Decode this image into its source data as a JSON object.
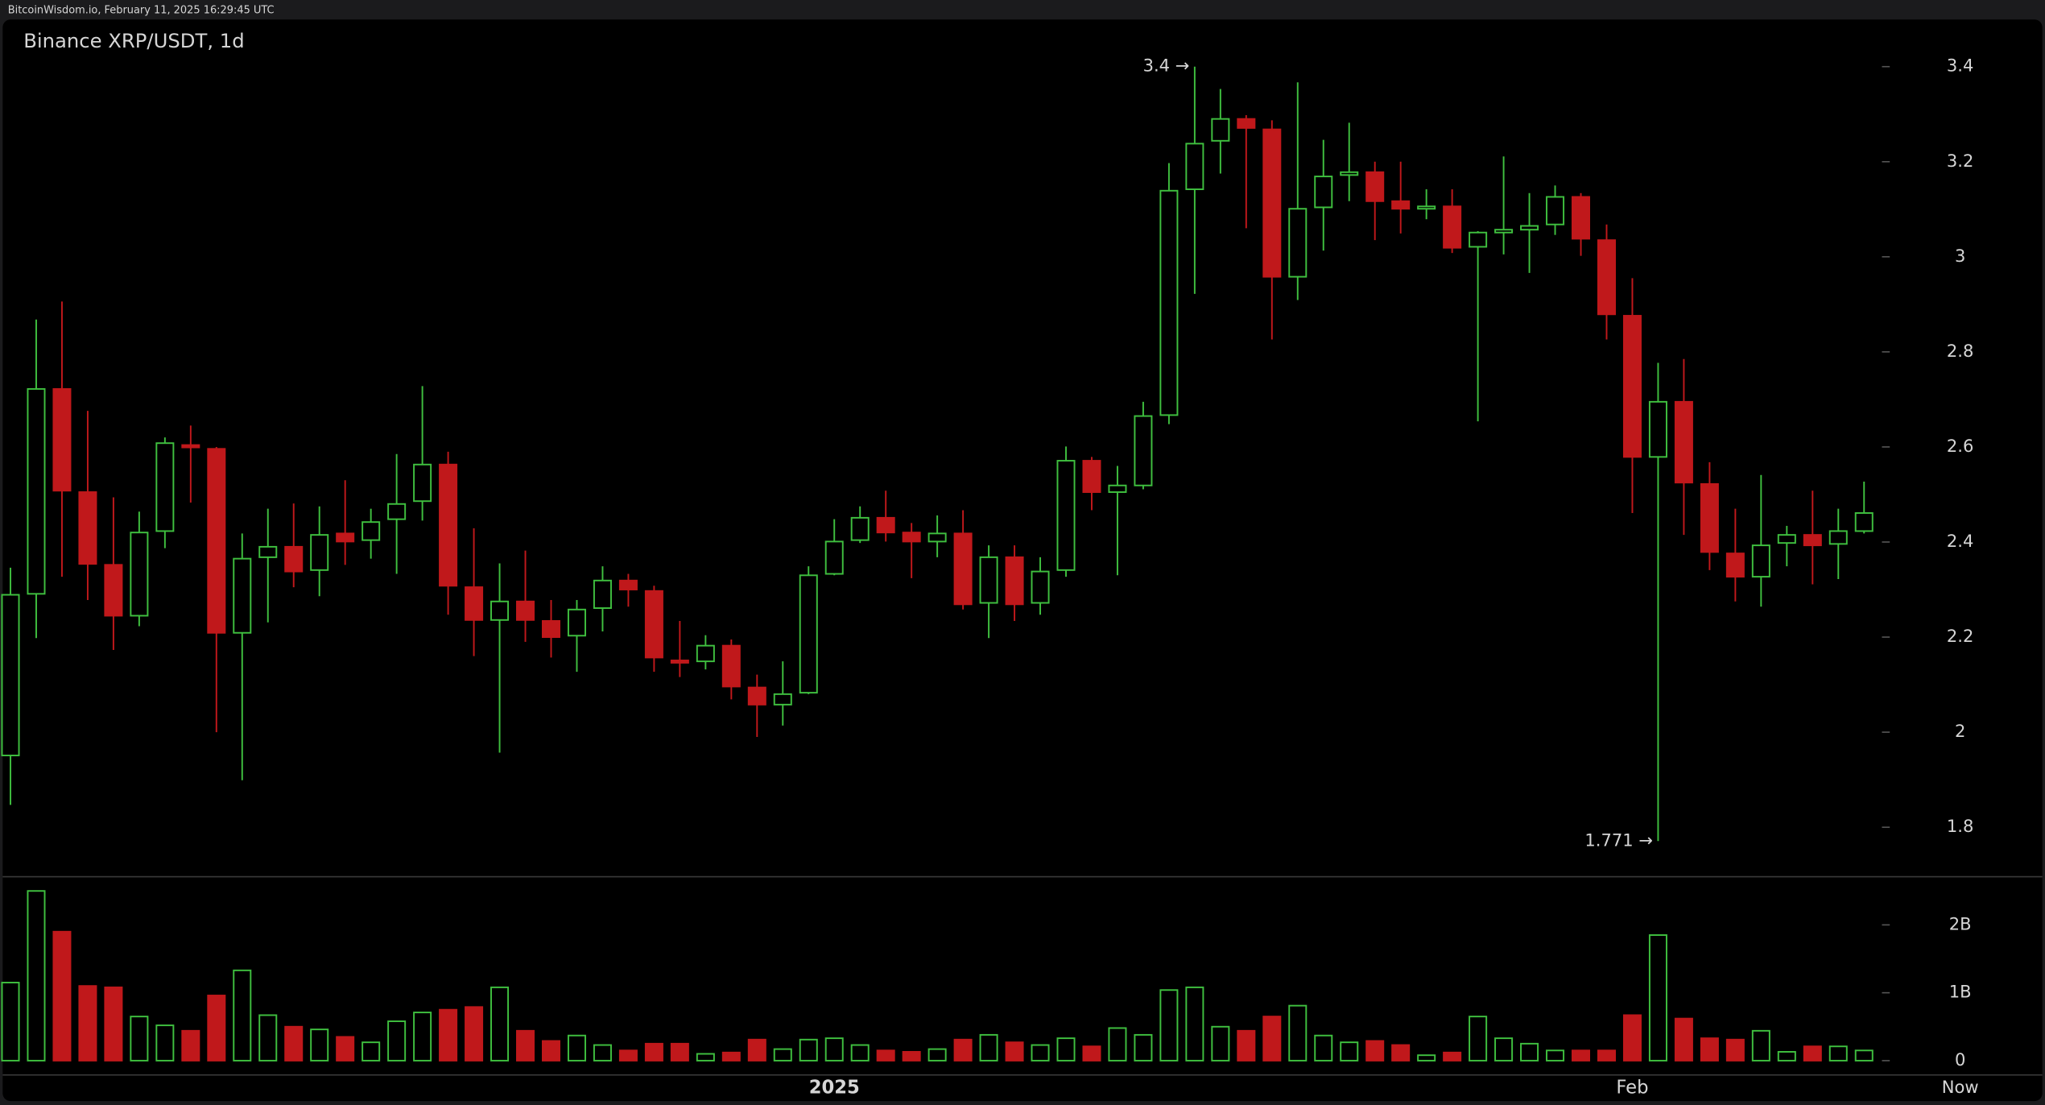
{
  "chart_data": {
    "type": "candlestick",
    "header": "BitcoinWisdom.io, February 11, 2025 16:29:45 UTC",
    "title": "Binance XRP/USDT, 1d",
    "categories": [
      null,
      null,
      null,
      null,
      null,
      null,
      null,
      null,
      null,
      null,
      null,
      null,
      null,
      null,
      null,
      null,
      null,
      null,
      null,
      null,
      null,
      null,
      null,
      null,
      null,
      null,
      null,
      null,
      null,
      null,
      null,
      null,
      "2025",
      null,
      null,
      null,
      null,
      null,
      null,
      null,
      null,
      null,
      null,
      null,
      null,
      null,
      null,
      null,
      null,
      null,
      null,
      null,
      null,
      null,
      null,
      null,
      null,
      null,
      null,
      null,
      null,
      null,
      null,
      "Feb",
      null,
      null,
      null,
      null,
      null,
      null,
      null,
      null,
      null
    ],
    "end_label": "Now",
    "open": [
      1.951,
      2.291,
      2.722,
      2.505,
      2.352,
      2.245,
      2.423,
      2.604,
      2.596,
      2.209,
      2.368,
      2.39,
      2.341,
      2.418,
      2.404,
      2.448,
      2.486,
      2.563,
      2.305,
      2.236,
      2.275,
      2.234,
      2.203,
      2.261,
      2.319,
      2.297,
      2.151,
      2.149,
      2.182,
      2.094,
      2.058,
      2.083,
      2.333,
      2.404,
      2.451,
      2.42,
      2.401,
      2.418,
      2.272,
      2.368,
      2.272,
      2.341,
      2.571,
      2.505,
      2.519,
      2.667,
      3.142,
      3.244,
      3.29,
      3.268,
      2.958,
      3.104,
      3.172,
      3.178,
      3.117,
      3.101,
      3.106,
      3.021,
      3.051,
      3.057,
      3.068,
      3.126,
      3.035,
      2.876,
      2.579,
      2.695,
      2.522,
      2.376,
      2.327,
      2.398,
      2.415,
      2.396,
      2.423
    ],
    "high": [
      2.346,
      2.868,
      2.906,
      2.676,
      2.494,
      2.464,
      2.62,
      2.645,
      2.6,
      2.418,
      2.47,
      2.481,
      2.475,
      2.53,
      2.47,
      2.585,
      2.728,
      2.59,
      2.429,
      2.355,
      2.382,
      2.278,
      2.278,
      2.349,
      2.333,
      2.308,
      2.234,
      2.204,
      2.195,
      2.121,
      2.149,
      2.349,
      2.448,
      2.475,
      2.508,
      2.44,
      2.456,
      2.467,
      2.393,
      2.393,
      2.368,
      2.601,
      2.579,
      2.56,
      2.695,
      3.197,
      3.4,
      3.353,
      3.298,
      3.287,
      3.367,
      3.246,
      3.282,
      3.2,
      3.2,
      3.142,
      3.142,
      3.054,
      3.211,
      3.134,
      3.15,
      3.134,
      3.068,
      2.955,
      2.777,
      2.785,
      2.568,
      2.47,
      2.541,
      2.434,
      2.508,
      2.47,
      2.527
    ],
    "low": [
      1.847,
      2.198,
      2.327,
      2.278,
      2.173,
      2.223,
      2.387,
      2.483,
      2.0,
      1.899,
      2.231,
      2.305,
      2.286,
      2.352,
      2.365,
      2.333,
      2.445,
      2.247,
      2.16,
      1.957,
      2.19,
      2.157,
      2.127,
      2.212,
      2.264,
      2.127,
      2.116,
      2.132,
      2.069,
      1.99,
      2.014,
      2.08,
      2.33,
      2.398,
      2.401,
      2.324,
      2.368,
      2.258,
      2.198,
      2.234,
      2.247,
      2.327,
      2.467,
      2.33,
      2.511,
      2.648,
      2.922,
      3.175,
      3.06,
      2.826,
      2.909,
      3.013,
      3.117,
      3.035,
      3.049,
      3.079,
      3.008,
      2.654,
      3.005,
      2.966,
      3.046,
      3.002,
      2.826,
      2.461,
      1.771,
      2.415,
      2.341,
      2.275,
      2.264,
      2.349,
      2.311,
      2.322,
      2.418
    ],
    "close": [
      2.289,
      2.722,
      2.508,
      2.354,
      2.245,
      2.42,
      2.608,
      2.599,
      2.209,
      2.365,
      2.39,
      2.338,
      2.415,
      2.401,
      2.442,
      2.48,
      2.563,
      2.308,
      2.236,
      2.275,
      2.236,
      2.2,
      2.258,
      2.319,
      2.3,
      2.157,
      2.146,
      2.182,
      2.096,
      2.058,
      2.08,
      2.33,
      2.401,
      2.451,
      2.42,
      2.401,
      2.418,
      2.269,
      2.368,
      2.269,
      2.338,
      2.571,
      2.505,
      2.519,
      2.665,
      3.139,
      3.238,
      3.29,
      3.271,
      2.958,
      3.101,
      3.169,
      3.178,
      3.117,
      3.101,
      3.106,
      3.019,
      3.051,
      3.057,
      3.065,
      3.126,
      3.038,
      2.879,
      2.579,
      2.695,
      2.525,
      2.379,
      2.327,
      2.393,
      2.415,
      2.393,
      2.423,
      2.461
    ],
    "volume": [
      1150000000.0,
      2500000000.0,
      1900000000.0,
      1100000000.0,
      1080000000.0,
      650000000.0,
      520000000.0,
      440000000.0,
      960000000.0,
      1330000000.0,
      670000000.0,
      500000000.0,
      460000000.0,
      350000000.0,
      270000000.0,
      580000000.0,
      710000000.0,
      750000000.0,
      790000000.0,
      1080000000.0,
      440000000.0,
      290000000.0,
      370000000.0,
      230000000.0,
      150000000.0,
      250000000.0,
      250000000.0,
      100000000.0,
      120000000.0,
      310000000.0,
      170000000.0,
      310000000.0,
      330000000.0,
      230000000.0,
      150000000.0,
      130000000.0,
      170000000.0,
      310000000.0,
      380000000.0,
      270000000.0,
      230000000.0,
      330000000.0,
      210000000.0,
      480000000.0,
      380000000.0,
      1040000000.0,
      1080000000.0,
      500000000.0,
      440000000.0,
      650000000.0,
      810000000.0,
      370000000.0,
      270000000.0,
      290000000.0,
      230000000.0,
      80000000.0,
      120000000.0,
      650000000.0,
      330000000.0,
      250000000.0,
      150000000.0,
      150000000.0,
      150000000.0,
      670000000.0,
      1850000000.0,
      620000000.0,
      330000000.0,
      310000000.0,
      440000000.0,
      130000000.0,
      210000000.0,
      210000000.0,
      150000000.0
    ],
    "up_color": "#3fbf3f",
    "down_color": "#c0181b",
    "ylim": [
      1.696,
      3.499
    ],
    "yticks": [
      1.8,
      2,
      2.2,
      2.4,
      2.6,
      2.8,
      3,
      3.2,
      3.4
    ],
    "volume_ylim": [
      0,
      2710000000.0
    ],
    "volume_yticks": [
      0,
      {
        "value": 1000000000.0,
        "label": "1B"
      },
      {
        "value": 2000000000.0,
        "label": "2B"
      }
    ],
    "max_label": "3.4 →",
    "min_label": "1.771 →"
  }
}
